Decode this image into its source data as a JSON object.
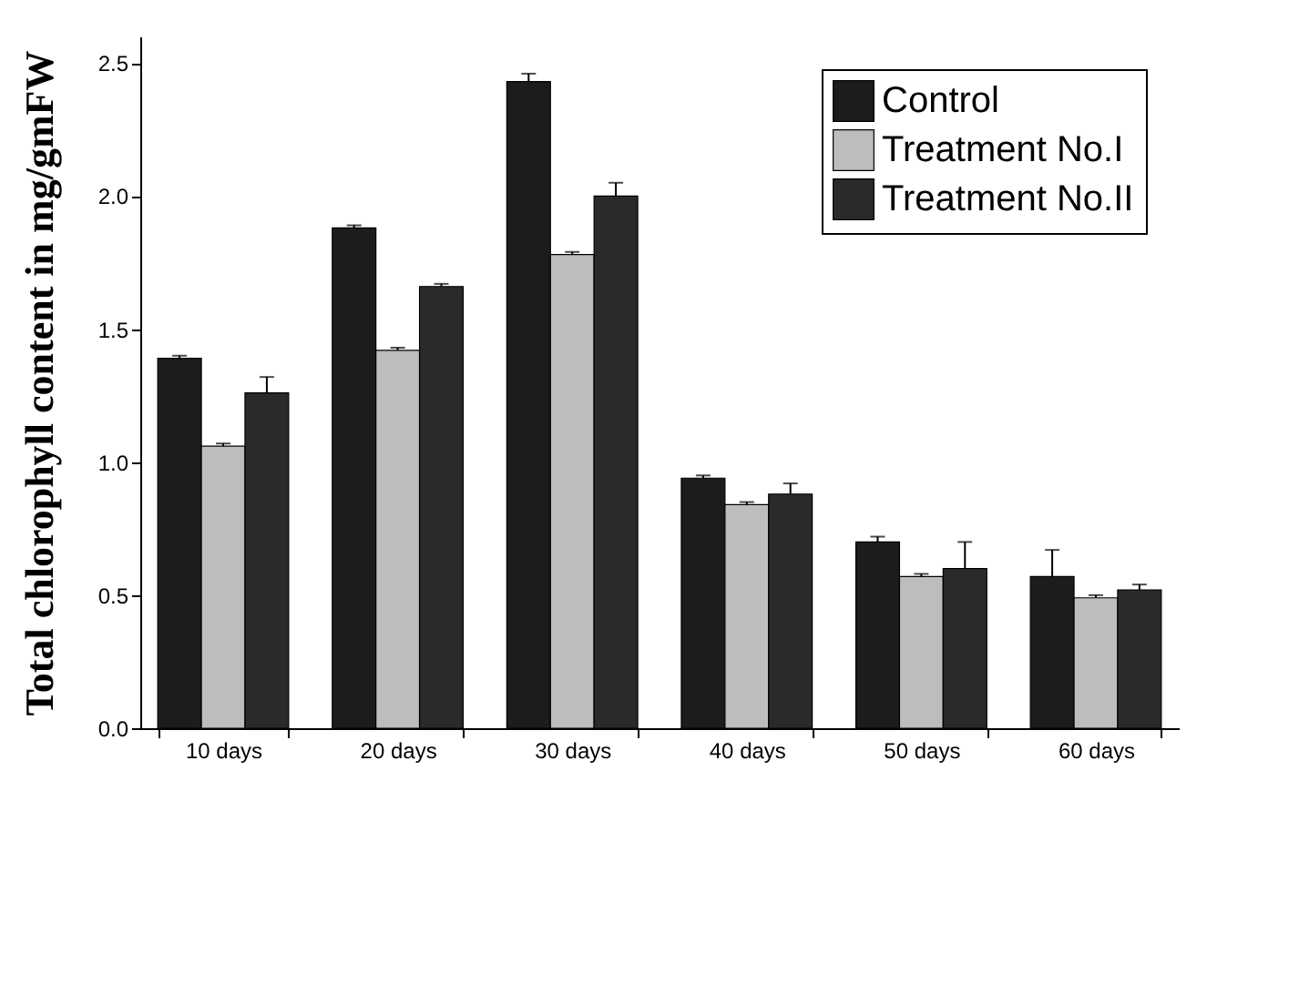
{
  "chart_data": {
    "type": "bar",
    "ylabel": "Total chlorophyll content in mg/gmFW",
    "categories": [
      "10 days",
      "20 days",
      "30 days",
      "40 days",
      "50 days",
      "60 days"
    ],
    "series": [
      {
        "name": "Control",
        "color": "#1c1c1c",
        "values": [
          1.39,
          1.88,
          2.43,
          0.94,
          0.7,
          0.57
        ],
        "errors": [
          0.01,
          0.01,
          0.03,
          0.01,
          0.02,
          0.1
        ]
      },
      {
        "name": "Treatment No.I",
        "color": "#bdbdbd",
        "values": [
          1.06,
          1.42,
          1.78,
          0.84,
          0.57,
          0.49
        ],
        "errors": [
          0.01,
          0.01,
          0.01,
          0.01,
          0.01,
          0.01
        ]
      },
      {
        "name": "Treatment No.II",
        "color": "#2a2a2a",
        "values": [
          1.26,
          1.66,
          2.0,
          0.88,
          0.6,
          0.52
        ],
        "errors": [
          0.06,
          0.01,
          0.05,
          0.04,
          0.1,
          0.02
        ]
      }
    ],
    "ylim": [
      0,
      2.6
    ],
    "yticks": [
      {
        "value": 0,
        "label": "0.0"
      },
      0.5,
      {
        "value": 1,
        "label": "1.0"
      },
      1.5,
      {
        "value": 2,
        "label": "2.0"
      },
      2.5
    ],
    "legend": "top right",
    "grid": false
  }
}
